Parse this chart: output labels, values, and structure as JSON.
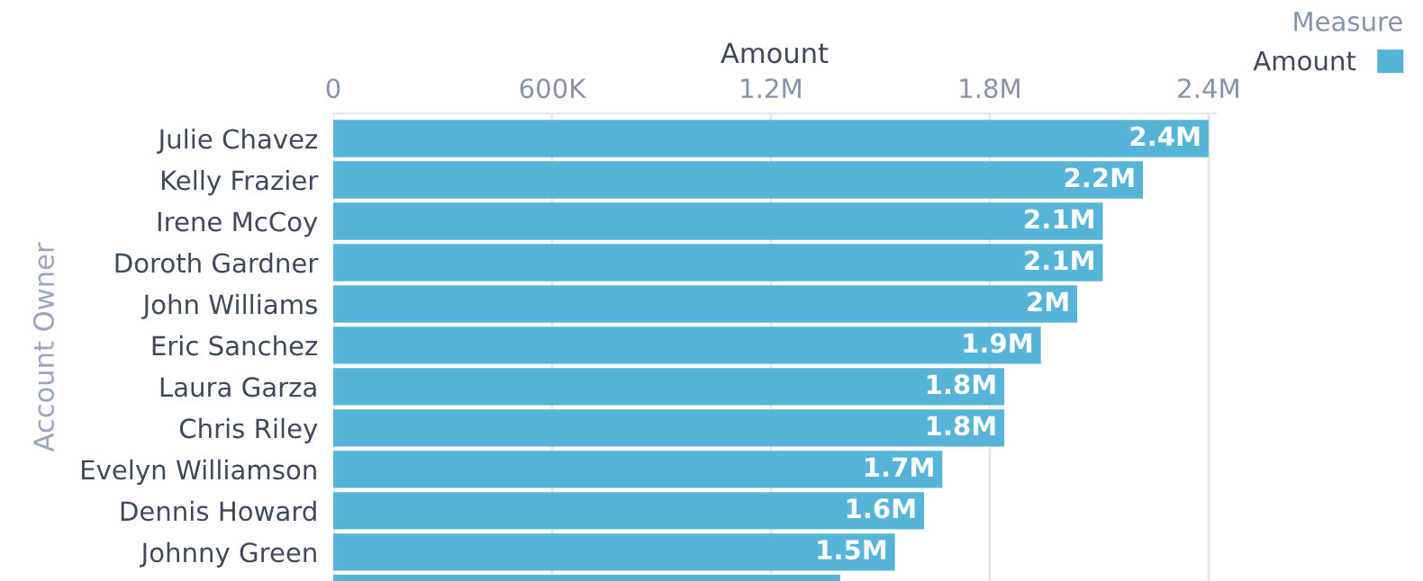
{
  "chart_data": {
    "type": "bar",
    "orientation": "horizontal",
    "xlabel": "Amount",
    "ylabel": "Account Owner",
    "legend_title": "Measure",
    "legend": "top right",
    "categories": [
      "Julie Chavez",
      "Kelly Frazier",
      "Irene McCoy",
      "Doroth Gardner",
      "John Williams",
      "Eric Sanchez",
      "Laura Garza",
      "Chris Riley",
      "Evelyn Williamson",
      "Dennis Howard",
      "Johnny Green",
      null
    ],
    "series": [
      {
        "name": "Amount",
        "color": "#56b4d9",
        "values": [
          2400000,
          2220000,
          2110000,
          2110000,
          2040000,
          1940000,
          1840000,
          1840000,
          1670000,
          1620000,
          1540000,
          1390000
        ],
        "value_labels": [
          "2.4M",
          "2.2M",
          "2.1M",
          "2.1M",
          "2M",
          "1.9M",
          "1.8M",
          "1.8M",
          "1.7M",
          "1.6M",
          "1.5M",
          null
        ]
      }
    ],
    "xlim": [
      0,
      2420000
    ],
    "xticks": [
      0,
      {
        "value": 600000,
        "label": "600K"
      },
      {
        "value": 1200000,
        "label": "1.2M"
      },
      {
        "value": 1800000,
        "label": "1.8M"
      },
      {
        "value": 2400000,
        "label": "2.4M"
      }
    ],
    "grid": "x"
  }
}
